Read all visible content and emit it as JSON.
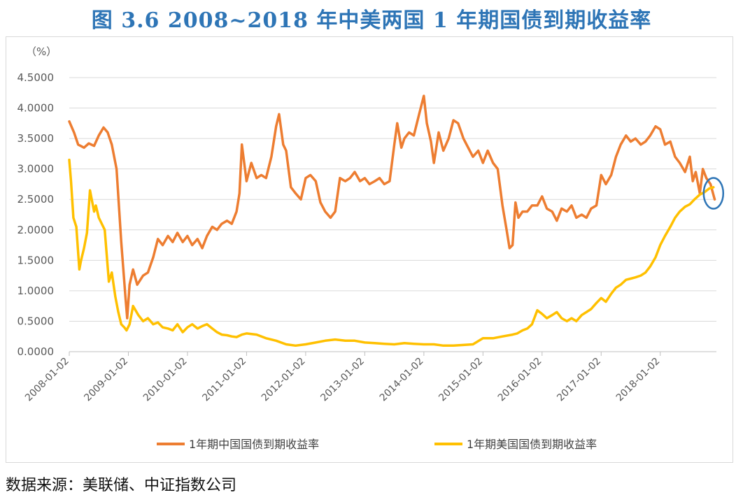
{
  "title": "图 3.6    2008~2018 年中美两国 1 年期国债到期收益率",
  "source": "数据来源：美联储、中证指数公司",
  "colors": {
    "china": "#ed7d31",
    "us": "#ffc000",
    "highlight_circle": "#2e75b6",
    "grid": "#d9d9d9",
    "axis_text": "#595959",
    "title": "#2e75b6"
  },
  "chart_data": {
    "type": "line",
    "unit_label": "（%）",
    "ylim": [
      0,
      4.5
    ],
    "yticks": [
      "0.0000",
      "0.5000",
      "1.0000",
      "1.5000",
      "2.0000",
      "2.5000",
      "3.0000",
      "3.5000",
      "4.0000",
      "4.5000"
    ],
    "xticks": [
      "2008-01-02",
      "2009-01-02",
      "2010-01-02",
      "2011-01-02",
      "2012-01-02",
      "2013-01-02",
      "2014-01-02",
      "2015-01-02",
      "2016-01-02",
      "2017-01-02",
      "2018-01-02"
    ],
    "xlim": [
      2008.0,
      2018.95
    ],
    "grid": true,
    "legend_position": "bottom",
    "series": [
      {
        "name": "1年期中国国债到期收益率",
        "color": "#ed7d31",
        "x": [
          2008.0,
          2008.08,
          2008.15,
          2008.25,
          2008.33,
          2008.42,
          2008.5,
          2008.58,
          2008.65,
          2008.72,
          2008.8,
          2008.88,
          2008.95,
          2008.98,
          2009.02,
          2009.08,
          2009.15,
          2009.25,
          2009.33,
          2009.42,
          2009.5,
          2009.58,
          2009.67,
          2009.75,
          2009.83,
          2009.92,
          2010.0,
          2010.08,
          2010.17,
          2010.25,
          2010.33,
          2010.42,
          2010.5,
          2010.58,
          2010.67,
          2010.75,
          2010.83,
          2010.88,
          2010.92,
          2011.0,
          2011.08,
          2011.17,
          2011.25,
          2011.33,
          2011.42,
          2011.5,
          2011.55,
          2011.62,
          2011.67,
          2011.75,
          2011.83,
          2011.92,
          2012.0,
          2012.08,
          2012.17,
          2012.25,
          2012.33,
          2012.42,
          2012.5,
          2012.58,
          2012.67,
          2012.75,
          2012.83,
          2012.92,
          2013.0,
          2013.08,
          2013.17,
          2013.25,
          2013.33,
          2013.42,
          2013.5,
          2013.55,
          2013.62,
          2013.67,
          2013.75,
          2013.83,
          2013.92,
          2014.0,
          2014.05,
          2014.12,
          2014.17,
          2014.25,
          2014.33,
          2014.42,
          2014.5,
          2014.58,
          2014.67,
          2014.75,
          2014.83,
          2014.92,
          2015.0,
          2015.08,
          2015.17,
          2015.25,
          2015.33,
          2015.4,
          2015.45,
          2015.5,
          2015.55,
          2015.6,
          2015.67,
          2015.75,
          2015.83,
          2015.92,
          2016.0,
          2016.08,
          2016.17,
          2016.25,
          2016.33,
          2016.42,
          2016.5,
          2016.58,
          2016.67,
          2016.75,
          2016.83,
          2016.92,
          2017.0,
          2017.08,
          2017.17,
          2017.25,
          2017.33,
          2017.42,
          2017.5,
          2017.58,
          2017.67,
          2017.75,
          2017.83,
          2017.92,
          2018.0,
          2018.08,
          2018.17,
          2018.25,
          2018.33,
          2018.42,
          2018.5,
          2018.55,
          2018.6,
          2018.67,
          2018.72,
          2018.78,
          2018.85,
          2018.92
        ],
        "y": [
          3.78,
          3.6,
          3.4,
          3.35,
          3.42,
          3.38,
          3.55,
          3.68,
          3.6,
          3.4,
          3.0,
          1.8,
          0.9,
          0.55,
          1.1,
          1.35,
          1.1,
          1.25,
          1.3,
          1.55,
          1.85,
          1.75,
          1.9,
          1.8,
          1.95,
          1.8,
          1.9,
          1.75,
          1.85,
          1.7,
          1.9,
          2.05,
          2.0,
          2.1,
          2.15,
          2.1,
          2.3,
          2.6,
          3.4,
          2.8,
          3.1,
          2.85,
          2.9,
          2.85,
          3.2,
          3.7,
          3.9,
          3.4,
          3.3,
          2.7,
          2.6,
          2.5,
          2.85,
          2.9,
          2.8,
          2.45,
          2.3,
          2.2,
          2.3,
          2.85,
          2.8,
          2.85,
          2.95,
          2.8,
          2.85,
          2.75,
          2.8,
          2.85,
          2.75,
          2.8,
          3.4,
          3.75,
          3.35,
          3.5,
          3.6,
          3.55,
          3.9,
          4.2,
          3.75,
          3.45,
          3.1,
          3.6,
          3.3,
          3.5,
          3.8,
          3.75,
          3.5,
          3.35,
          3.2,
          3.3,
          3.1,
          3.3,
          3.1,
          3.0,
          2.4,
          2.0,
          1.7,
          1.75,
          2.45,
          2.2,
          2.3,
          2.3,
          2.4,
          2.4,
          2.55,
          2.35,
          2.3,
          2.15,
          2.35,
          2.3,
          2.4,
          2.2,
          2.25,
          2.2,
          2.35,
          2.4,
          2.9,
          2.75,
          2.9,
          3.2,
          3.4,
          3.55,
          3.45,
          3.5,
          3.4,
          3.45,
          3.55,
          3.7,
          3.65,
          3.4,
          3.45,
          3.2,
          3.1,
          2.95,
          3.2,
          2.8,
          2.95,
          2.6,
          3.0,
          2.85,
          2.75,
          2.5
        ]
      },
      {
        "name": "1年期美国国债到期收益率",
        "color": "#ffc000",
        "x": [
          2008.0,
          2008.03,
          2008.07,
          2008.12,
          2008.17,
          2008.2,
          2008.25,
          2008.3,
          2008.35,
          2008.42,
          2008.45,
          2008.5,
          2008.55,
          2008.6,
          2008.67,
          2008.72,
          2008.78,
          2008.83,
          2008.88,
          2008.93,
          2008.97,
          2009.02,
          2009.08,
          2009.17,
          2009.25,
          2009.33,
          2009.42,
          2009.5,
          2009.58,
          2009.67,
          2009.75,
          2009.83,
          2009.92,
          2010.0,
          2010.08,
          2010.17,
          2010.25,
          2010.33,
          2010.42,
          2010.5,
          2010.58,
          2010.67,
          2010.75,
          2010.83,
          2010.92,
          2011.0,
          2011.17,
          2011.33,
          2011.5,
          2011.67,
          2011.83,
          2012.0,
          2012.17,
          2012.33,
          2012.5,
          2012.67,
          2012.83,
          2013.0,
          2013.17,
          2013.33,
          2013.5,
          2013.67,
          2013.83,
          2014.0,
          2014.17,
          2014.33,
          2014.5,
          2014.67,
          2014.83,
          2015.0,
          2015.17,
          2015.33,
          2015.5,
          2015.58,
          2015.67,
          2015.75,
          2015.83,
          2015.92,
          2016.0,
          2016.08,
          2016.17,
          2016.25,
          2016.33,
          2016.42,
          2016.5,
          2016.58,
          2016.67,
          2016.75,
          2016.83,
          2016.92,
          2017.0,
          2017.08,
          2017.17,
          2017.25,
          2017.33,
          2017.42,
          2017.5,
          2017.58,
          2017.67,
          2017.75,
          2017.83,
          2017.92,
          2018.0,
          2018.08,
          2018.17,
          2018.25,
          2018.33,
          2018.42,
          2018.5,
          2018.58,
          2018.67,
          2018.75,
          2018.83,
          2018.9
        ],
        "y": [
          3.15,
          2.8,
          2.2,
          2.05,
          1.35,
          1.5,
          1.7,
          1.95,
          2.65,
          2.3,
          2.4,
          2.2,
          2.1,
          2.0,
          1.15,
          1.3,
          0.9,
          0.65,
          0.45,
          0.4,
          0.35,
          0.45,
          0.75,
          0.6,
          0.5,
          0.55,
          0.45,
          0.48,
          0.4,
          0.38,
          0.35,
          0.45,
          0.32,
          0.4,
          0.45,
          0.38,
          0.42,
          0.45,
          0.38,
          0.32,
          0.28,
          0.27,
          0.25,
          0.24,
          0.28,
          0.3,
          0.28,
          0.22,
          0.18,
          0.12,
          0.1,
          0.12,
          0.15,
          0.18,
          0.2,
          0.18,
          0.18,
          0.15,
          0.14,
          0.13,
          0.12,
          0.14,
          0.13,
          0.12,
          0.12,
          0.1,
          0.1,
          0.11,
          0.12,
          0.22,
          0.22,
          0.25,
          0.28,
          0.3,
          0.35,
          0.38,
          0.45,
          0.68,
          0.62,
          0.55,
          0.6,
          0.65,
          0.55,
          0.5,
          0.55,
          0.5,
          0.6,
          0.65,
          0.7,
          0.8,
          0.88,
          0.82,
          0.95,
          1.05,
          1.1,
          1.18,
          1.2,
          1.22,
          1.25,
          1.3,
          1.4,
          1.55,
          1.75,
          1.9,
          2.05,
          2.2,
          2.3,
          2.38,
          2.42,
          2.5,
          2.58,
          2.62,
          2.68,
          2.7
        ]
      }
    ],
    "highlight": {
      "x": 2018.9,
      "y": 2.6
    }
  }
}
